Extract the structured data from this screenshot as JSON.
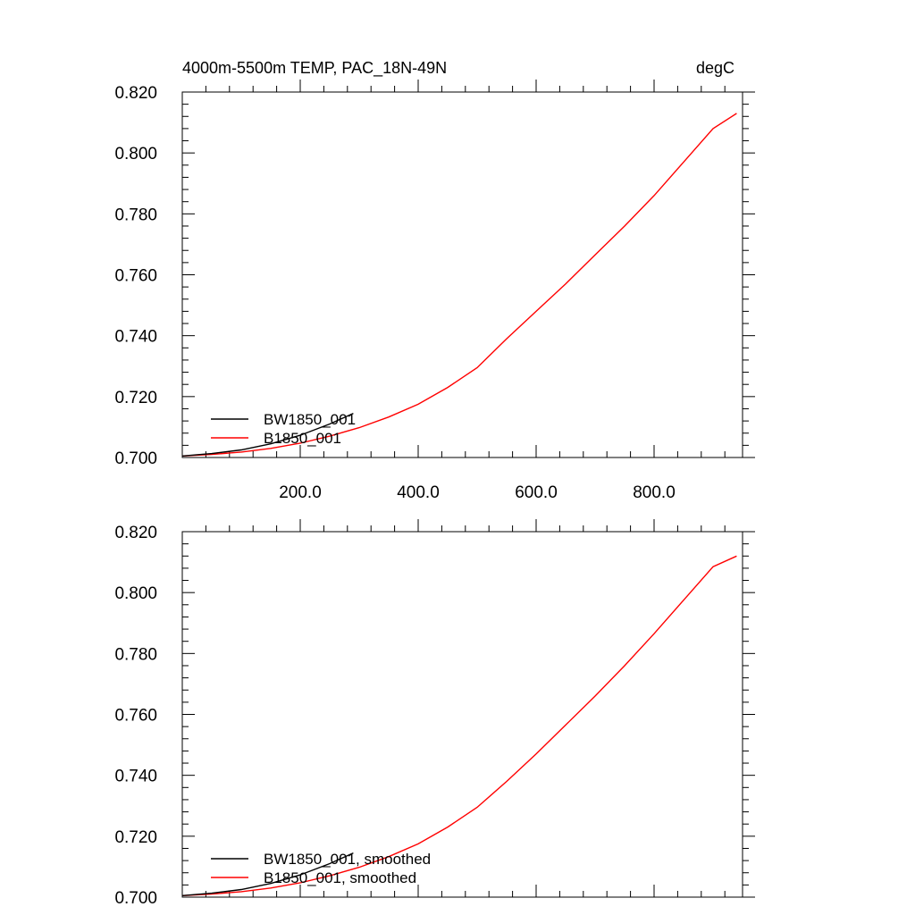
{
  "chart_data": [
    {
      "type": "line",
      "title": "4000m-5500m TEMP, PAC_18N-49N",
      "units": "degC",
      "xlim": [
        0,
        950
      ],
      "ylim": [
        0.7,
        0.82
      ],
      "xticks": [
        200,
        400,
        600,
        800
      ],
      "xtick_labels": [
        "200.0",
        "400.0",
        "600.0",
        "800.0"
      ],
      "yticks": [
        0.7,
        0.72,
        0.74,
        0.76,
        0.78,
        0.8,
        0.82
      ],
      "ytick_labels": [
        "0.700",
        "0.720",
        "0.740",
        "0.760",
        "0.780",
        "0.800",
        "0.820"
      ],
      "grid": false,
      "legend_position": "bottom-left",
      "series": [
        {
          "name": "BW1850_001",
          "color": "#000000",
          "x": [
            0,
            50,
            100,
            150,
            200,
            250,
            290
          ],
          "y": [
            0.7005,
            0.7013,
            0.7025,
            0.7045,
            0.7073,
            0.711,
            0.7145
          ]
        },
        {
          "name": "B1850_001",
          "color": "#ff0000",
          "x": [
            0,
            50,
            100,
            150,
            200,
            250,
            300,
            350,
            400,
            450,
            500,
            550,
            600,
            650,
            700,
            750,
            800,
            850,
            900,
            940
          ],
          "y": [
            0.7005,
            0.701,
            0.7018,
            0.703,
            0.7047,
            0.707,
            0.7098,
            0.7133,
            0.7175,
            0.723,
            0.7295,
            0.739,
            0.748,
            0.757,
            0.7665,
            0.776,
            0.786,
            0.797,
            0.808,
            0.813
          ]
        }
      ]
    },
    {
      "type": "line",
      "title": "",
      "xlim": [
        0,
        950
      ],
      "ylim": [
        0.7,
        0.82
      ],
      "xticks": [
        200,
        400,
        600,
        800
      ],
      "yticks": [
        0.7,
        0.72,
        0.74,
        0.76,
        0.78,
        0.8,
        0.82
      ],
      "ytick_labels": [
        "0.700",
        "0.720",
        "0.740",
        "0.760",
        "0.780",
        "0.800",
        "0.820"
      ],
      "grid": false,
      "legend_position": "bottom-left",
      "series": [
        {
          "name": "BW1850_001, smoothed",
          "color": "#000000",
          "x": [
            0,
            50,
            100,
            150,
            200,
            250,
            290
          ],
          "y": [
            0.7005,
            0.7013,
            0.7025,
            0.7045,
            0.7073,
            0.711,
            0.7145
          ]
        },
        {
          "name": "B1850_001, smoothed",
          "color": "#ff0000",
          "x": [
            0,
            50,
            100,
            150,
            200,
            250,
            300,
            350,
            400,
            450,
            500,
            550,
            600,
            650,
            700,
            750,
            800,
            850,
            900,
            940
          ],
          "y": [
            0.7005,
            0.701,
            0.7018,
            0.703,
            0.7047,
            0.707,
            0.7098,
            0.7133,
            0.7175,
            0.723,
            0.7295,
            0.738,
            0.747,
            0.7565,
            0.766,
            0.776,
            0.7865,
            0.7975,
            0.8085,
            0.812
          ]
        }
      ]
    }
  ]
}
